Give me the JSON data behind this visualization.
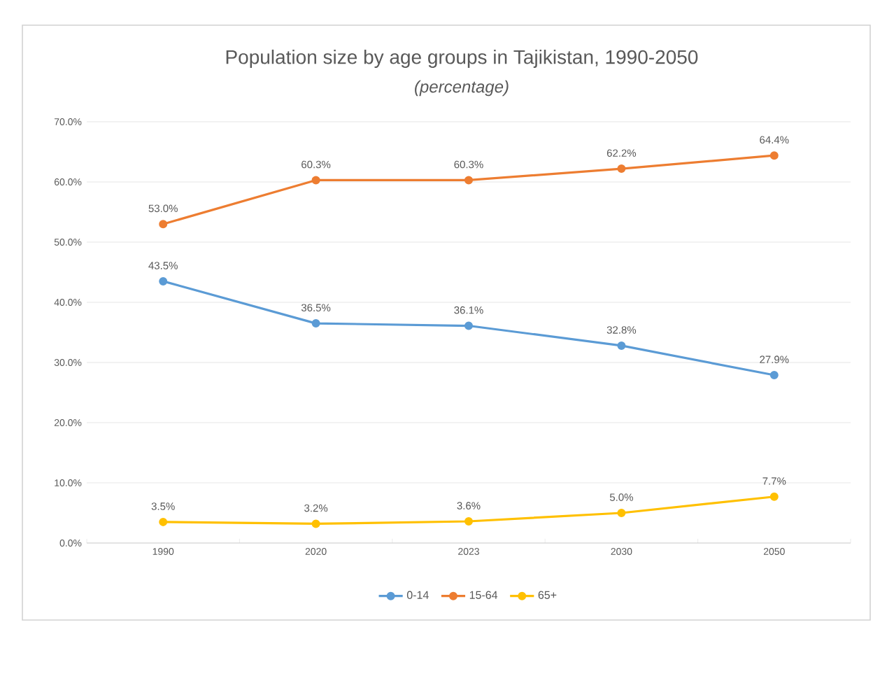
{
  "chart_data": {
    "type": "line",
    "title": "Population size by age groups in Tajikistan, 1990-2050",
    "subtitle": "(percentage)",
    "categories": [
      "1990",
      "2020",
      "2023",
      "2030",
      "2050"
    ],
    "series": [
      {
        "name": "0-14",
        "color": "#5b9bd5",
        "values": [
          43.5,
          36.5,
          36.1,
          32.8,
          27.9
        ],
        "value_labels": [
          "43.5%",
          "36.5%",
          "36.1%",
          "32.8%",
          "27.9%"
        ]
      },
      {
        "name": "15-64",
        "color": "#ed7d31",
        "values": [
          53.0,
          60.3,
          60.3,
          62.2,
          64.4
        ],
        "value_labels": [
          "53.0%",
          "60.3%",
          "60.3%",
          "62.2%",
          "64.4%"
        ]
      },
      {
        "name": "65+",
        "color": "#ffc000",
        "values": [
          3.5,
          3.2,
          3.6,
          5.0,
          7.7
        ],
        "value_labels": [
          "3.5%",
          "3.2%",
          "3.6%",
          "5.0%",
          "7.7%"
        ]
      }
    ],
    "ylim": [
      0,
      70
    ],
    "yticks": [
      {
        "value": 0,
        "label": "0.0%"
      },
      {
        "value": 10,
        "label": "10.0%"
      },
      {
        "value": 20,
        "label": "20.0%"
      },
      {
        "value": 30,
        "label": "30.0%"
      },
      {
        "value": 40,
        "label": "40.0%"
      },
      {
        "value": 50,
        "label": "50.0%"
      },
      {
        "value": 60,
        "label": "60.0%"
      },
      {
        "value": 70,
        "label": "70.0%"
      }
    ],
    "grid": "y",
    "legend": "bottom",
    "marker": "circle",
    "line_style": "solid"
  }
}
